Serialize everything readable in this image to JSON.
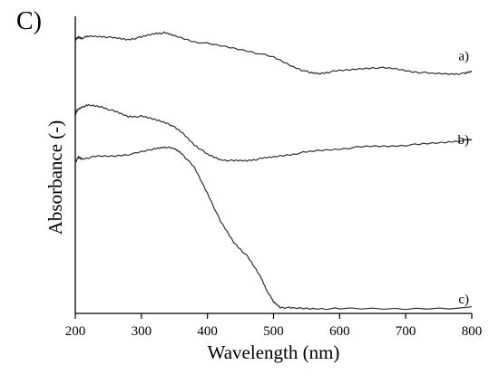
{
  "panel_label": "C)",
  "chart_data": {
    "type": "line",
    "title": "",
    "xlabel": "Wavelength (nm)",
    "ylabel": "Absorbance (-)",
    "xlim": [
      200,
      800
    ],
    "ylim": [
      0,
      1
    ],
    "x_ticks": [
      "200",
      "300",
      "400",
      "500",
      "600",
      "700",
      "800"
    ],
    "y_ticks": [],
    "grid": false,
    "legend": "inline labels at right end of each curve",
    "series": [
      {
        "name": "a)",
        "label_at": [
          800,
          0.9
        ],
        "points": [
          [
            200,
            0.955
          ],
          [
            205,
            0.965
          ],
          [
            210,
            0.962
          ],
          [
            220,
            0.968
          ],
          [
            240,
            0.968
          ],
          [
            260,
            0.962
          ],
          [
            280,
            0.957
          ],
          [
            300,
            0.965
          ],
          [
            320,
            0.978
          ],
          [
            335,
            0.98
          ],
          [
            350,
            0.97
          ],
          [
            380,
            0.95
          ],
          [
            420,
            0.935
          ],
          [
            460,
            0.918
          ],
          [
            500,
            0.895
          ],
          [
            530,
            0.862
          ],
          [
            555,
            0.84
          ],
          [
            570,
            0.838
          ],
          [
            590,
            0.845
          ],
          [
            620,
            0.852
          ],
          [
            650,
            0.859
          ],
          [
            680,
            0.856
          ],
          [
            710,
            0.845
          ],
          [
            740,
            0.838
          ],
          [
            770,
            0.837
          ],
          [
            790,
            0.838
          ],
          [
            800,
            0.846
          ]
        ]
      },
      {
        "name": "b)",
        "label_at": [
          800,
          0.607
        ],
        "points": [
          [
            200,
            0.695
          ],
          [
            203,
            0.71
          ],
          [
            210,
            0.722
          ],
          [
            220,
            0.727
          ],
          [
            240,
            0.722
          ],
          [
            260,
            0.705
          ],
          [
            280,
            0.688
          ],
          [
            300,
            0.688
          ],
          [
            320,
            0.678
          ],
          [
            340,
            0.665
          ],
          [
            360,
            0.635
          ],
          [
            380,
            0.59
          ],
          [
            400,
            0.555
          ],
          [
            420,
            0.537
          ],
          [
            440,
            0.533
          ],
          [
            460,
            0.534
          ],
          [
            480,
            0.54
          ],
          [
            500,
            0.547
          ],
          [
            530,
            0.557
          ],
          [
            560,
            0.567
          ],
          [
            600,
            0.575
          ],
          [
            640,
            0.583
          ],
          [
            680,
            0.585
          ],
          [
            720,
            0.59
          ],
          [
            760,
            0.598
          ],
          [
            790,
            0.605
          ],
          [
            800,
            0.607
          ]
        ]
      },
      {
        "name": "c)",
        "label_at": [
          800,
          0.05
        ],
        "points": [
          [
            200,
            0.53
          ],
          [
            205,
            0.545
          ],
          [
            210,
            0.54
          ],
          [
            230,
            0.548
          ],
          [
            260,
            0.55
          ],
          [
            290,
            0.558
          ],
          [
            320,
            0.575
          ],
          [
            335,
            0.582
          ],
          [
            350,
            0.575
          ],
          [
            360,
            0.562
          ],
          [
            380,
            0.51
          ],
          [
            400,
            0.42
          ],
          [
            420,
            0.32
          ],
          [
            440,
            0.248
          ],
          [
            460,
            0.2
          ],
          [
            480,
            0.13
          ],
          [
            490,
            0.08
          ],
          [
            500,
            0.04
          ],
          [
            510,
            0.022
          ],
          [
            530,
            0.018
          ],
          [
            560,
            0.017
          ],
          [
            600,
            0.016
          ],
          [
            700,
            0.016
          ],
          [
            800,
            0.02
          ]
        ]
      }
    ]
  }
}
